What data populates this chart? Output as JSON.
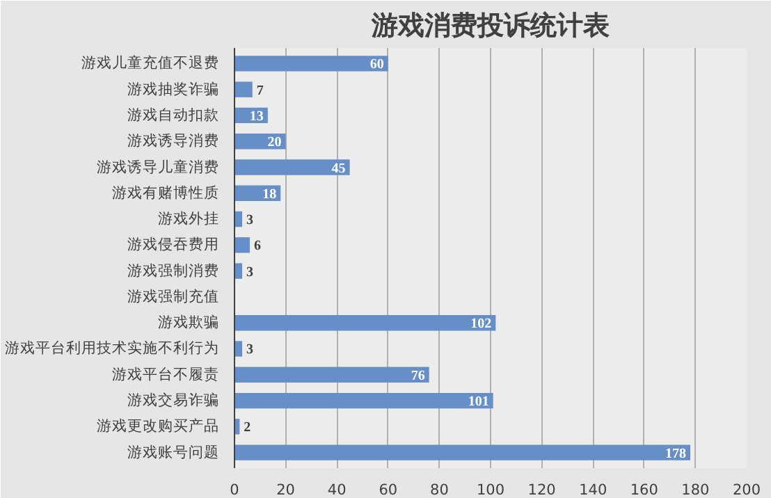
{
  "chart_data": {
    "type": "bar",
    "orientation": "horizontal",
    "title": "游戏消费投诉统计表",
    "categories": [
      "游戏儿童充值不退费",
      "游戏抽奖诈骗",
      "游戏自动扣款",
      "游戏诱导消费",
      "游戏诱导儿童消费",
      "游戏有赌博性质",
      "游戏外挂",
      "游戏侵吞费用",
      "游戏强制消费",
      "游戏强制充值",
      "游戏欺骗",
      "游戏平台利用技术实施不利行为",
      "游戏平台不履责",
      "游戏交易诈骗",
      "游戏更改购买产品",
      "游戏账号问题"
    ],
    "values": [
      60,
      7,
      13,
      20,
      45,
      18,
      3,
      6,
      3,
      null,
      102,
      3,
      76,
      101,
      2,
      178
    ],
    "value_labels": [
      "60",
      "7",
      "13",
      "20",
      "45",
      "18",
      "3",
      "6",
      "3",
      null,
      "102",
      "3",
      "76",
      "101",
      "2",
      "178"
    ],
    "color": "#658fc6",
    "xlim": [
      0,
      200
    ],
    "xticks": [
      0,
      20,
      40,
      60,
      80,
      100,
      120,
      140,
      160,
      180,
      200
    ],
    "grid": "x"
  }
}
